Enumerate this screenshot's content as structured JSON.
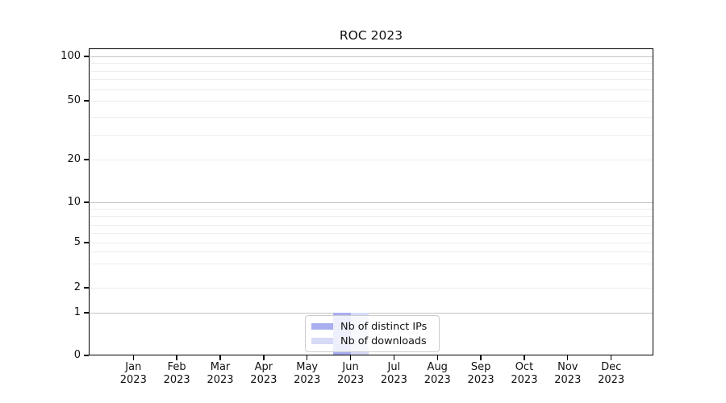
{
  "title": "ROC 2023",
  "colors": {
    "bar_distinct_ips": "#a8aeef",
    "bar_downloads": "#d7dbf7",
    "axis": "#000000",
    "grid_major": "#c3c3c3",
    "grid_minor": "#ededed"
  },
  "axes": {
    "y_tick_labels": [
      "100",
      "50",
      "20",
      "10",
      "5",
      "2",
      "1",
      "0"
    ],
    "x_months": [
      "Jan",
      "Feb",
      "Mar",
      "Apr",
      "May",
      "Jun",
      "Jul",
      "Aug",
      "Sep",
      "Oct",
      "Nov",
      "Dec"
    ],
    "x_year": "2023"
  },
  "legend": {
    "items": [
      {
        "label": "Nb of distinct IPs",
        "color": "#a8aeef"
      },
      {
        "label": "Nb of downloads",
        "color": "#d7dbf7"
      }
    ]
  },
  "chart_data": {
    "type": "bar",
    "title": "ROC 2023",
    "categories": [
      "Jan 2023",
      "Feb 2023",
      "Mar 2023",
      "Apr 2023",
      "May 2023",
      "Jun 2023",
      "Jul 2023",
      "Aug 2023",
      "Sep 2023",
      "Oct 2023",
      "Nov 2023",
      "Dec 2023"
    ],
    "series": [
      {
        "name": "Nb of distinct IPs",
        "color": "#a8aeef",
        "values": [
          0,
          0,
          0,
          0,
          0,
          1,
          0,
          0,
          0,
          0,
          0,
          0
        ]
      },
      {
        "name": "Nb of downloads",
        "color": "#d7dbf7",
        "values": [
          0,
          0,
          0,
          0,
          0,
          1,
          0,
          0,
          0,
          0,
          0,
          0
        ]
      }
    ],
    "xlabel": "",
    "ylabel": "",
    "yscale": "log-like (0, 1, 2, 5, 10, 20, 50, 100)",
    "yticks": [
      0,
      1,
      2,
      5,
      10,
      20,
      50,
      100
    ],
    "grid": true,
    "legend_position": "bottom-center"
  }
}
